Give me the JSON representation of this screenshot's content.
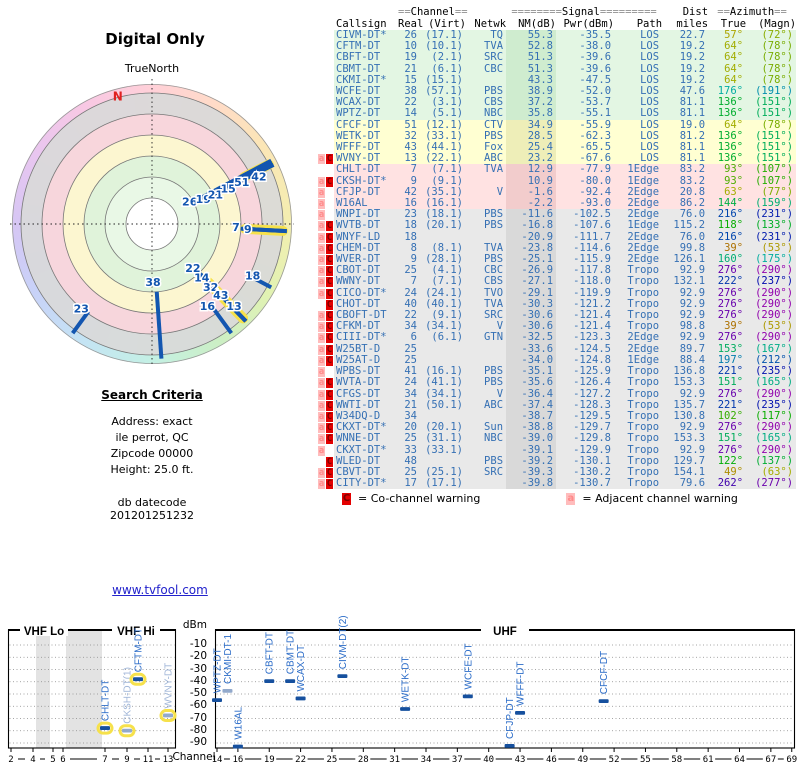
{
  "link": "www.tvfool.com",
  "search_criteria": {
    "heading": "Search Criteria",
    "lines": [
      "Address: exact",
      "ile perrot, QC",
      "Zipcode 00000",
      "Height: 25.0 ft."
    ],
    "datecode_label": "db datecode",
    "datecode": "201201251232"
  },
  "table": {
    "group_headers": {
      "channel": {
        "pre": "==",
        "label": "Channel",
        "post": "=="
      },
      "signal": {
        "pre": "========",
        "label": "Signal",
        "post": "========="
      },
      "dist": {
        "label": "Dist"
      },
      "azimuth": {
        "pre": "==",
        "label": "Azimuth",
        "post": "=="
      }
    },
    "columns": [
      "Callsign",
      "Real",
      "(Virt)",
      "Netwk",
      "NM(dB)",
      "Pwr(dBm)",
      "Path",
      "miles",
      "True",
      "(Magn)"
    ],
    "rows": [
      {
        "warn": "",
        "call": "CIVM-DT*",
        "real": "26",
        "virt": "(17.1)",
        "net": "TQ",
        "nm": "55.3",
        "pwr": "-35.5",
        "path": "LOS",
        "mi": "22.7",
        "azt": 57,
        "azm": 72,
        "band": "green"
      },
      {
        "warn": "",
        "call": "CFTM-DT",
        "real": "10",
        "virt": "(10.1)",
        "net": "TVA",
        "nm": "52.8",
        "pwr": "-38.0",
        "path": "LOS",
        "mi": "19.2",
        "azt": 64,
        "azm": 78,
        "band": "green"
      },
      {
        "warn": "",
        "call": "CBFT-DT",
        "real": "19",
        "virt": "(2.1)",
        "net": "SRC",
        "nm": "51.3",
        "pwr": "-39.6",
        "path": "LOS",
        "mi": "19.2",
        "azt": 64,
        "azm": 78,
        "band": "green"
      },
      {
        "warn": "",
        "call": "CBMT-DT",
        "real": "21",
        "virt": "(6.1)",
        "net": "CBC",
        "nm": "51.3",
        "pwr": "-39.6",
        "path": "LOS",
        "mi": "19.2",
        "azt": 64,
        "azm": 78,
        "band": "green"
      },
      {
        "warn": "",
        "call": "CKMI-DT*",
        "real": "15",
        "virt": "(15.1)",
        "net": "",
        "nm": "43.3",
        "pwr": "-47.5",
        "path": "LOS",
        "mi": "19.2",
        "azt": 64,
        "azm": 78,
        "band": "green"
      },
      {
        "warn": "",
        "call": "WCFE-DT",
        "real": "38",
        "virt": "(57.1)",
        "net": "PBS",
        "nm": "38.9",
        "pwr": "-52.0",
        "path": "LOS",
        "mi": "47.6",
        "azt": 176,
        "azm": 191,
        "band": "green"
      },
      {
        "warn": "",
        "call": "WCAX-DT",
        "real": "22",
        "virt": "(3.1)",
        "net": "CBS",
        "nm": "37.2",
        "pwr": "-53.7",
        "path": "LOS",
        "mi": "81.1",
        "azt": 136,
        "azm": 151,
        "band": "green"
      },
      {
        "warn": "",
        "call": "WPTZ-DT",
        "real": "14",
        "virt": "(5.1)",
        "net": "NBC",
        "nm": "35.8",
        "pwr": "-55.1",
        "path": "LOS",
        "mi": "81.1",
        "azt": 136,
        "azm": 151,
        "band": "green"
      },
      {
        "warn": "",
        "call": "CFCF-DT",
        "real": "51",
        "virt": "(12.1)",
        "net": "CTV",
        "nm": "34.9",
        "pwr": "-55.9",
        "path": "LOS",
        "mi": "19.0",
        "azt": 64,
        "azm": 78,
        "band": "yellow"
      },
      {
        "warn": "",
        "call": "WETK-DT",
        "real": "32",
        "virt": "(33.1)",
        "net": "PBS",
        "nm": "28.5",
        "pwr": "-62.3",
        "path": "LOS",
        "mi": "81.2",
        "azt": 136,
        "azm": 151,
        "band": "yellow"
      },
      {
        "warn": "",
        "call": "WFFF-DT",
        "real": "43",
        "virt": "(44.1)",
        "net": "Fox",
        "nm": "25.4",
        "pwr": "-65.5",
        "path": "LOS",
        "mi": "81.1",
        "azt": 136,
        "azm": 151,
        "band": "yellow"
      },
      {
        "warn": "aC",
        "call": "WVNY-DT",
        "real": "13",
        "virt": "(22.1)",
        "net": "ABC",
        "nm": "23.2",
        "pwr": "-67.6",
        "path": "LOS",
        "mi": "81.1",
        "azt": 136,
        "azm": 151,
        "band": "yellow"
      },
      {
        "warn": "",
        "call": "CHLT-DT",
        "real": "7",
        "virt": "(7.1)",
        "net": "TVA",
        "nm": "12.9",
        "pwr": "-77.9",
        "path": "1Edge",
        "mi": "83.2",
        "azt": 93,
        "azm": 107,
        "band": "pink"
      },
      {
        "warn": "aC",
        "call": "CKSH-DT*",
        "real": "9",
        "virt": "(9.1)",
        "net": "",
        "nm": "10.9",
        "pwr": "-80.0",
        "path": "1Edge",
        "mi": "83.2",
        "azt": 93,
        "azm": 107,
        "band": "pink"
      },
      {
        "warn": "a",
        "call": "CFJP-DT",
        "real": "42",
        "virt": "(35.1)",
        "net": "V",
        "nm": "-1.6",
        "pwr": "-92.4",
        "path": "2Edge",
        "mi": "20.8",
        "azt": 63,
        "azm": 77,
        "band": "pink"
      },
      {
        "warn": "a",
        "call": "W16AL",
        "real": "16",
        "virt": "(16.1)",
        "net": "",
        "nm": "-2.2",
        "pwr": "-93.0",
        "path": "2Edge",
        "mi": "86.2",
        "azt": 144,
        "azm": 159,
        "band": "pink"
      },
      {
        "warn": "a",
        "call": "WNPI-DT",
        "real": "23",
        "virt": "(18.1)",
        "net": "PBS",
        "nm": "-11.6",
        "pwr": "-102.5",
        "path": "2Edge",
        "mi": "76.0",
        "azt": 216,
        "azm": 231,
        "band": "gray"
      },
      {
        "warn": "aC",
        "call": "WVTB-DT",
        "real": "18",
        "virt": "(20.1)",
        "net": "PBS",
        "nm": "-16.8",
        "pwr": "-107.6",
        "path": "1Edge",
        "mi": "115.2",
        "azt": 118,
        "azm": 133,
        "band": "gray"
      },
      {
        "warn": "aC",
        "call": "WNYF-LD",
        "real": "18",
        "virt": "",
        "net": "",
        "nm": "-20.9",
        "pwr": "-111.7",
        "path": "2Edge",
        "mi": "76.0",
        "azt": 216,
        "azm": 231,
        "band": "gray"
      },
      {
        "warn": "aC",
        "call": "CHEM-DT",
        "real": "8",
        "virt": "(8.1)",
        "net": "TVA",
        "nm": "-23.8",
        "pwr": "-114.6",
        "path": "2Edge",
        "mi": "99.8",
        "azt": 39,
        "azm": 53,
        "band": "gray"
      },
      {
        "warn": "aC",
        "call": "WVER-DT",
        "real": "9",
        "virt": "(28.1)",
        "net": "PBS",
        "nm": "-25.1",
        "pwr": "-115.9",
        "path": "2Edge",
        "mi": "126.1",
        "azt": 160,
        "azm": 175,
        "band": "gray"
      },
      {
        "warn": "aC",
        "call": "CBOT-DT",
        "real": "25",
        "virt": "(4.1)",
        "net": "CBC",
        "nm": "-26.9",
        "pwr": "-117.8",
        "path": "Tropo",
        "mi": "92.9",
        "azt": 276,
        "azm": 290,
        "band": "gray"
      },
      {
        "warn": "aC",
        "call": "WWNY-DT",
        "real": "7",
        "virt": "(7.1)",
        "net": "CBS",
        "nm": "-27.1",
        "pwr": "-118.0",
        "path": "Tropo",
        "mi": "132.1",
        "azt": 222,
        "azm": 237,
        "band": "gray"
      },
      {
        "warn": "aC",
        "call": "CICO-DT*",
        "real": "24",
        "virt": "(24.1)",
        "net": "TVO",
        "nm": "-29.1",
        "pwr": "-119.9",
        "path": "Tropo",
        "mi": "92.9",
        "azt": 276,
        "azm": 290,
        "band": "gray"
      },
      {
        "warn": "C",
        "call": "CHOT-DT",
        "real": "40",
        "virt": "(40.1)",
        "net": "TVA",
        "nm": "-30.3",
        "pwr": "-121.2",
        "path": "Tropo",
        "mi": "92.9",
        "azt": 276,
        "azm": 290,
        "band": "gray"
      },
      {
        "warn": "aC",
        "call": "CBOFT-DT",
        "real": "22",
        "virt": "(9.1)",
        "net": "SRC",
        "nm": "-30.6",
        "pwr": "-121.4",
        "path": "Tropo",
        "mi": "92.9",
        "azt": 276,
        "azm": 290,
        "band": "gray"
      },
      {
        "warn": "aC",
        "call": "CFKM-DT",
        "real": "34",
        "virt": "(34.1)",
        "net": "V",
        "nm": "-30.6",
        "pwr": "-121.4",
        "path": "Tropo",
        "mi": "98.8",
        "azt": 39,
        "azm": 53,
        "band": "gray"
      },
      {
        "warn": "aC",
        "call": "CIII-DT*",
        "real": "6",
        "virt": "(6.1)",
        "net": "GTN",
        "nm": "-32.5",
        "pwr": "-123.3",
        "path": "2Edge",
        "mi": "92.9",
        "azt": 276,
        "azm": 290,
        "band": "gray"
      },
      {
        "warn": "aC",
        "call": "W25BT-D",
        "real": "25",
        "virt": "",
        "net": "",
        "nm": "-33.6",
        "pwr": "-124.5",
        "path": "2Edge",
        "mi": "89.7",
        "azt": 153,
        "azm": 167,
        "band": "gray"
      },
      {
        "warn": "aC",
        "call": "W25AT-D",
        "real": "25",
        "virt": "",
        "net": "",
        "nm": "-34.0",
        "pwr": "-124.8",
        "path": "1Edge",
        "mi": "88.4",
        "azt": 197,
        "azm": 212,
        "band": "gray"
      },
      {
        "warn": "a",
        "call": "WPBS-DT",
        "real": "41",
        "virt": "(16.1)",
        "net": "PBS",
        "nm": "-35.1",
        "pwr": "-125.9",
        "path": "Tropo",
        "mi": "136.8",
        "azt": 221,
        "azm": 235,
        "band": "gray"
      },
      {
        "warn": "aC",
        "call": "WVTA-DT",
        "real": "24",
        "virt": "(41.1)",
        "net": "PBS",
        "nm": "-35.6",
        "pwr": "-126.4",
        "path": "Tropo",
        "mi": "153.3",
        "azt": 151,
        "azm": 165,
        "band": "gray"
      },
      {
        "warn": "aC",
        "call": "CFGS-DT",
        "real": "34",
        "virt": "(34.1)",
        "net": "V",
        "nm": "-36.4",
        "pwr": "-127.2",
        "path": "Tropo",
        "mi": "92.9",
        "azt": 276,
        "azm": 290,
        "band": "gray"
      },
      {
        "warn": "aC",
        "call": "WWTI-DT",
        "real": "21",
        "virt": "(50.1)",
        "net": "ABC",
        "nm": "-37.4",
        "pwr": "-128.3",
        "path": "Tropo",
        "mi": "135.7",
        "azt": 221,
        "azm": 235,
        "band": "gray"
      },
      {
        "warn": "aC",
        "call": "W34DQ-D",
        "real": "34",
        "virt": "",
        "net": "",
        "nm": "-38.7",
        "pwr": "-129.5",
        "path": "Tropo",
        "mi": "130.8",
        "azt": 102,
        "azm": 117,
        "band": "gray"
      },
      {
        "warn": "aC",
        "call": "CKXT-DT*",
        "real": "20",
        "virt": "(20.1)",
        "net": "Sun",
        "nm": "-38.8",
        "pwr": "-129.7",
        "path": "Tropo",
        "mi": "92.9",
        "azt": 276,
        "azm": 290,
        "band": "gray"
      },
      {
        "warn": "aC",
        "call": "WNNE-DT",
        "real": "25",
        "virt": "(31.1)",
        "net": "NBC",
        "nm": "-39.0",
        "pwr": "-129.8",
        "path": "Tropo",
        "mi": "153.3",
        "azt": 151,
        "azm": 165,
        "band": "gray"
      },
      {
        "warn": "a",
        "call": "CKXT-DT*",
        "real": "33",
        "virt": "(33.1)",
        "net": "",
        "nm": "-39.1",
        "pwr": "-129.9",
        "path": "Tropo",
        "mi": "92.9",
        "azt": 276,
        "azm": 290,
        "band": "gray"
      },
      {
        "warn": "C",
        "call": "WLED-DT",
        "real": "48",
        "virt": "",
        "net": "PBS",
        "nm": "-39.2",
        "pwr": "-130.1",
        "path": "Tropo",
        "mi": "129.7",
        "azt": 122,
        "azm": 137,
        "band": "gray"
      },
      {
        "warn": "aC",
        "call": "CBVT-DT",
        "real": "25",
        "virt": "(25.1)",
        "net": "SRC",
        "nm": "-39.3",
        "pwr": "-130.2",
        "path": "Tropo",
        "mi": "154.1",
        "azt": 49,
        "azm": 63,
        "band": "gray"
      },
      {
        "warn": "aC",
        "call": "CITY-DT*",
        "real": "17",
        "virt": "(17.1)",
        "net": "",
        "nm": "-39.8",
        "pwr": "-130.7",
        "path": "Tropo",
        "mi": "79.6",
        "azt": 262,
        "azm": 277,
        "band": "gray"
      }
    ],
    "legend": {
      "co_badge": "C",
      "co": "= Co-channel warning",
      "adj_badge": "a",
      "adj": "= Adjacent channel warning"
    }
  },
  "chart_data": [
    {
      "type": "radar",
      "title": "Digital Only",
      "north_label": "TrueNorth",
      "magnetic_north_marker": "N",
      "magnetic_north_az": 345,
      "spokes": [
        {
          "channel": "26",
          "az": 57,
          "drawAz": 62,
          "nm": 55.3,
          "labelR": 44,
          "labelAz": 59
        },
        {
          "channel": "10",
          "az": 64,
          "nm": 52.8,
          "hideLabel": true
        },
        {
          "channel": "19",
          "az": 64,
          "nm": 51.3,
          "labelR": 57,
          "labelAz": 64
        },
        {
          "channel": "21",
          "az": 64,
          "nm": 51.3,
          "labelR": 70,
          "labelAz": 65
        },
        {
          "channel": "15",
          "az": 64,
          "nm": 43.3,
          "labelR": 84,
          "labelAz": 65
        },
        {
          "channel": "51",
          "az": 64,
          "nm": 34.9,
          "labelR": 99,
          "labelAz": 65
        },
        {
          "channel": "42",
          "az": 63,
          "nm": -1.6,
          "labelR": 117,
          "labelAz": 66,
          "highlight": true
        },
        {
          "channel": "7",
          "az": 93,
          "nm": 12.9,
          "labelR": 84,
          "labelAz": 92
        },
        {
          "channel": "9",
          "az": 93,
          "nm": 10.9,
          "labelR": 96,
          "labelAz": 93,
          "highlight": true
        },
        {
          "channel": "18",
          "az": 118,
          "nm": -16.8,
          "labelR": 113,
          "labelAz": 117
        },
        {
          "channel": "22",
          "az": 136,
          "nm": 37.2,
          "labelR": 60,
          "labelAz": 137
        },
        {
          "channel": "14",
          "az": 136,
          "nm": 35.8,
          "labelR": 73,
          "labelAz": 137
        },
        {
          "channel": "32",
          "az": 136,
          "nm": 28.5,
          "labelR": 86,
          "labelAz": 137,
          "highlight": true
        },
        {
          "channel": "43",
          "az": 136,
          "nm": 25.4,
          "labelR": 99,
          "labelAz": 136,
          "highlight": true
        },
        {
          "channel": "13",
          "az": 136,
          "nm": 23.2,
          "labelR": 116,
          "labelAz": 135,
          "highlight": true
        },
        {
          "channel": "16",
          "az": 144,
          "nm": -2.2,
          "labelR": 99,
          "labelAz": 146
        },
        {
          "channel": "38",
          "az": 176,
          "nm": 38.9,
          "labelR": 58,
          "labelAz": 179
        },
        {
          "channel": "23",
          "az": 216,
          "nm": -11.6,
          "labelR": 110,
          "labelAz": 220
        }
      ]
    },
    {
      "type": "scatter",
      "xlabel": "Channel",
      "ylabel": "dBm",
      "ylim": [
        -95,
        -5
      ],
      "yticks": [
        -10,
        -20,
        -30,
        -40,
        -50,
        -60,
        -70,
        -80,
        -90
      ],
      "band_sections": [
        {
          "label": "VHF Lo",
          "range": [
            2,
            6
          ]
        },
        {
          "label": "VHF Hi",
          "range": [
            7,
            13
          ]
        },
        {
          "label": "UHF",
          "range": [
            14,
            69
          ]
        }
      ],
      "spectrum_gaps": [
        [
          4,
          5
        ],
        [
          6,
          7
        ]
      ],
      "vhf_ticks": [
        2,
        4,
        5,
        6,
        7,
        9,
        11,
        13
      ],
      "uhf_ticks": [
        14,
        16,
        19,
        22,
        25,
        28,
        31,
        34,
        37,
        40,
        43,
        46,
        49,
        52,
        55,
        58,
        61,
        64,
        67,
        69
      ],
      "points": [
        {
          "label": "CHLT-DT",
          "channel": 7,
          "dbm": -77.9,
          "highlight": true
        },
        {
          "label": "CKSH-DT(1)",
          "channel": 9,
          "dbm": -80.0,
          "highlight": true,
          "muted": true
        },
        {
          "label": "CFTM-DT",
          "channel": 10,
          "dbm": -38.0,
          "highlight": true
        },
        {
          "label": "WVNY-DT",
          "channel": 13,
          "dbm": -67.6,
          "highlight": true,
          "muted": true
        },
        {
          "label": "WPTZ-DT",
          "channel": 14,
          "dbm": -55.1
        },
        {
          "label": "CKMI-DT-1",
          "channel": 15,
          "dbm": -47.5,
          "muted_marker": true
        },
        {
          "label": "W16AL",
          "channel": 16,
          "dbm": -93.0
        },
        {
          "label": "CBFT-DT",
          "channel": 19,
          "dbm": -39.6
        },
        {
          "label": "CBMT-DT",
          "channel": 21,
          "dbm": -39.6
        },
        {
          "label": "WCAX-DT",
          "channel": 22,
          "dbm": -53.7
        },
        {
          "label": "CIVM-DT(2)",
          "channel": 26,
          "dbm": -35.5
        },
        {
          "label": "WETK-DT",
          "channel": 32,
          "dbm": -62.3
        },
        {
          "label": "WCFE-DT",
          "channel": 38,
          "dbm": -52.0
        },
        {
          "label": "CFJP-DT",
          "channel": 42,
          "dbm": -92.4
        },
        {
          "label": "WFFF-DT",
          "channel": 43,
          "dbm": -65.5
        },
        {
          "label": "CFCF-DT",
          "channel": 51,
          "dbm": -55.9
        }
      ]
    }
  ]
}
